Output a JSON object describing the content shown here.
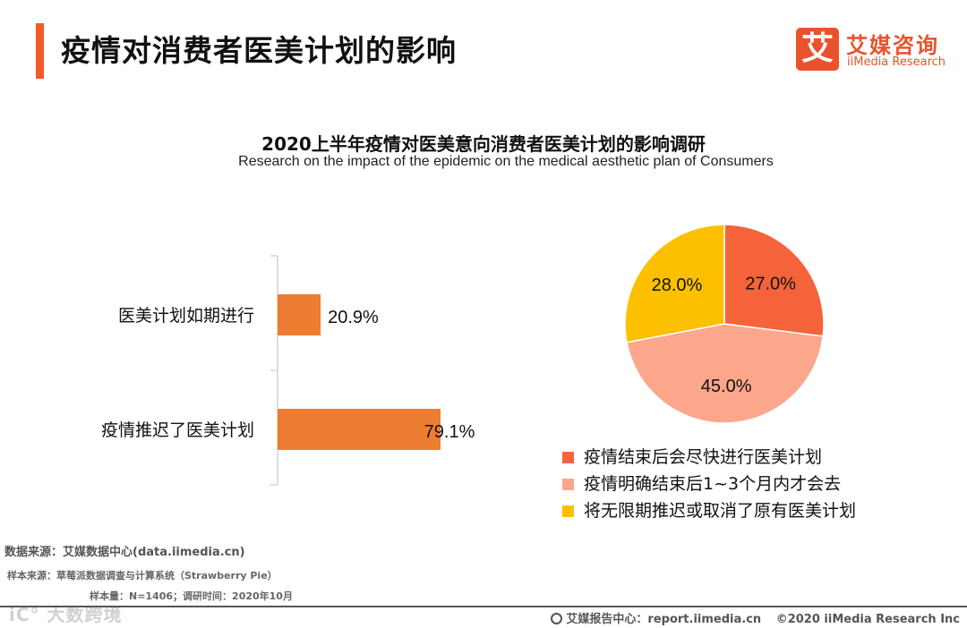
{
  "header": {
    "title": "疫情对消费者医美计划的影响",
    "logo_mark": "艾",
    "logo_cn": "艾媒咨询",
    "logo_en": "iiMedia Research"
  },
  "colors": {
    "accent": "#f25a2a",
    "bar": "#ed7d31",
    "pie": [
      "#f5633a",
      "#fca68c",
      "#fcc000"
    ]
  },
  "chart_data": [
    {
      "type": "bar",
      "orientation": "horizontal",
      "title": "2020上半年疫情对医美意向消费者医美计划的影响调研",
      "subtitle": "Research on the impact of the epidemic on the medical aesthetic plan of Consumers",
      "categories": [
        "医美计划如期进行",
        "疫情推迟了医美计划"
      ],
      "values": [
        20.9,
        79.1
      ],
      "labels": [
        "20.9%",
        "79.1%"
      ],
      "xlim": [
        0,
        100
      ],
      "unit": "%"
    },
    {
      "type": "pie",
      "categories": [
        "疫情结束后会尽快进行医美计划",
        "疫情明确结束后1~3个月内才会去",
        "将无限期推迟或取消了原有医美计划"
      ],
      "values": [
        27.0,
        45.0,
        28.0
      ],
      "labels": [
        "27.0%",
        "45.0%",
        "28.0%"
      ],
      "legend_position": "bottom"
    }
  ],
  "source": {
    "main": "数据来源：艾媒数据中心(data.iimedia.cn)",
    "sample": "样本来源：草莓派数据调查与计算系统（Strawberry Pie）",
    "size": "样本量：N=1406；调研时间：2020年10月"
  },
  "watermark": "iC° 大数跨境",
  "footer": {
    "report": "艾媒报告中心：report.iimedia.cn",
    "copyright": "©2020  iiMedia Research  Inc"
  }
}
